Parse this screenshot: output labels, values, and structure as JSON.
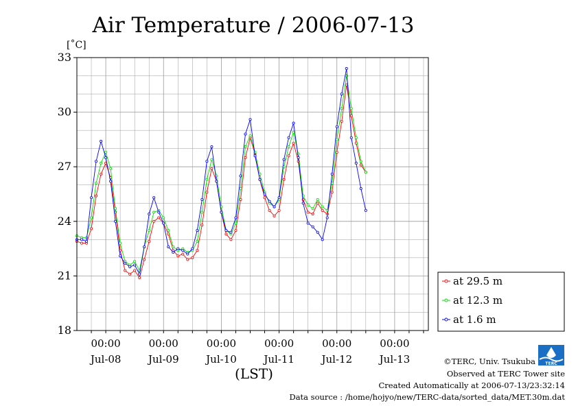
{
  "chart_data": {
    "type": "line",
    "title": "Air Temperature / 2006-07-13",
    "ylabel": "[˚C]",
    "xlabel": "(LST)",
    "ylim": [
      18,
      33
    ],
    "yticks": [
      18,
      21,
      24,
      27,
      30,
      33
    ],
    "xlim": [
      "2006-07-07T12:00",
      "2006-07-13T14:00"
    ],
    "xticks": [
      {
        "x": "2006-07-08T00:00",
        "label": "00:00",
        "day": "Jul-08"
      },
      {
        "x": "2006-07-09T00:00",
        "label": "00:00",
        "day": "Jul-09"
      },
      {
        "x": "2006-07-10T00:00",
        "label": "00:00",
        "day": "Jul-10"
      },
      {
        "x": "2006-07-11T00:00",
        "label": "00:00",
        "day": "Jul-11"
      },
      {
        "x": "2006-07-12T00:00",
        "label": "00:00",
        "day": "Jul-12"
      },
      {
        "x": "2006-07-13T00:00",
        "label": "00:00",
        "day": "Jul-13"
      }
    ],
    "grid": true,
    "legend_position": "right",
    "series": [
      {
        "name": "at 29.5 m",
        "color": "#ff0000",
        "points": [
          [
            "2006-07-07T12:00",
            22.9
          ],
          [
            "2006-07-07T14:00",
            22.8
          ],
          [
            "2006-07-07T16:00",
            22.8
          ],
          [
            "2006-07-07T18:00",
            23.6
          ],
          [
            "2006-07-07T20:00",
            25.4
          ],
          [
            "2006-07-07T22:00",
            26.6
          ],
          [
            "2006-07-08T00:00",
            27.2
          ],
          [
            "2006-07-08T02:00",
            26.4
          ],
          [
            "2006-07-08T04:00",
            24.5
          ],
          [
            "2006-07-08T06:00",
            22.4
          ],
          [
            "2006-07-08T08:00",
            21.3
          ],
          [
            "2006-07-08T10:00",
            21.1
          ],
          [
            "2006-07-08T12:00",
            21.3
          ],
          [
            "2006-07-08T14:00",
            20.9
          ],
          [
            "2006-07-08T16:00",
            21.9
          ],
          [
            "2006-07-08T18:00",
            22.9
          ],
          [
            "2006-07-08T20:00",
            24.0
          ],
          [
            "2006-07-08T22:00",
            24.2
          ],
          [
            "2006-07-09T00:00",
            23.9
          ],
          [
            "2006-07-09T02:00",
            23.3
          ],
          [
            "2006-07-09T04:00",
            22.4
          ],
          [
            "2006-07-09T06:00",
            22.1
          ],
          [
            "2006-07-09T08:00",
            22.2
          ],
          [
            "2006-07-09T10:00",
            21.9
          ],
          [
            "2006-07-09T12:00",
            22.0
          ],
          [
            "2006-07-09T14:00",
            22.4
          ],
          [
            "2006-07-09T16:00",
            23.8
          ],
          [
            "2006-07-09T18:00",
            25.6
          ],
          [
            "2006-07-09T20:00",
            26.9
          ],
          [
            "2006-07-09T22:00",
            26.2
          ],
          [
            "2006-07-10T00:00",
            24.5
          ],
          [
            "2006-07-10T02:00",
            23.3
          ],
          [
            "2006-07-10T04:00",
            23.0
          ],
          [
            "2006-07-10T06:00",
            23.5
          ],
          [
            "2006-07-10T08:00",
            25.2
          ],
          [
            "2006-07-10T10:00",
            27.5
          ],
          [
            "2006-07-10T12:00",
            28.6
          ],
          [
            "2006-07-10T14:00",
            27.7
          ],
          [
            "2006-07-10T16:00",
            26.3
          ],
          [
            "2006-07-10T18:00",
            25.3
          ],
          [
            "2006-07-10T20:00",
            24.6
          ],
          [
            "2006-07-10T22:00",
            24.3
          ],
          [
            "2006-07-11T00:00",
            24.6
          ],
          [
            "2006-07-11T02:00",
            26.3
          ],
          [
            "2006-07-11T04:00",
            27.6
          ],
          [
            "2006-07-11T06:00",
            28.3
          ],
          [
            "2006-07-11T08:00",
            27.3
          ],
          [
            "2006-07-11T10:00",
            25.2
          ],
          [
            "2006-07-11T12:00",
            24.5
          ],
          [
            "2006-07-11T14:00",
            24.4
          ],
          [
            "2006-07-11T16:00",
            25.0
          ],
          [
            "2006-07-11T18:00",
            24.6
          ],
          [
            "2006-07-11T20:00",
            24.4
          ],
          [
            "2006-07-11T22:00",
            25.6
          ],
          [
            "2006-07-12T00:00",
            27.8
          ],
          [
            "2006-07-12T02:00",
            29.5
          ],
          [
            "2006-07-12T04:00",
            31.5
          ],
          [
            "2006-07-12T06:00",
            29.8
          ],
          [
            "2006-07-12T08:00",
            28.3
          ],
          [
            "2006-07-12T10:00",
            27.1
          ],
          [
            "2006-07-12T12:00",
            26.7
          ]
        ]
      },
      {
        "name": "at 12.3 m",
        "color": "#00dd00",
        "points": [
          [
            "2006-07-07T12:00",
            23.2
          ],
          [
            "2006-07-07T14:00",
            23.1
          ],
          [
            "2006-07-07T16:00",
            23.1
          ],
          [
            "2006-07-07T18:00",
            24.2
          ],
          [
            "2006-07-07T20:00",
            26.1
          ],
          [
            "2006-07-07T22:00",
            27.2
          ],
          [
            "2006-07-08T00:00",
            27.8
          ],
          [
            "2006-07-08T02:00",
            26.9
          ],
          [
            "2006-07-08T04:00",
            24.7
          ],
          [
            "2006-07-08T06:00",
            22.8
          ],
          [
            "2006-07-08T08:00",
            21.8
          ],
          [
            "2006-07-08T10:00",
            21.6
          ],
          [
            "2006-07-08T12:00",
            21.8
          ],
          [
            "2006-07-08T14:00",
            21.3
          ],
          [
            "2006-07-08T16:00",
            22.6
          ],
          [
            "2006-07-08T18:00",
            23.5
          ],
          [
            "2006-07-08T20:00",
            24.5
          ],
          [
            "2006-07-08T22:00",
            24.6
          ],
          [
            "2006-07-09T00:00",
            24.2
          ],
          [
            "2006-07-09T02:00",
            23.5
          ],
          [
            "2006-07-09T04:00",
            22.6
          ],
          [
            "2006-07-09T06:00",
            22.4
          ],
          [
            "2006-07-09T08:00",
            22.5
          ],
          [
            "2006-07-09T10:00",
            22.3
          ],
          [
            "2006-07-09T12:00",
            22.4
          ],
          [
            "2006-07-09T14:00",
            22.9
          ],
          [
            "2006-07-09T16:00",
            24.5
          ],
          [
            "2006-07-09T18:00",
            26.3
          ],
          [
            "2006-07-09T20:00",
            27.4
          ],
          [
            "2006-07-09T22:00",
            26.5
          ],
          [
            "2006-07-10T00:00",
            24.8
          ],
          [
            "2006-07-10T02:00",
            23.5
          ],
          [
            "2006-07-10T04:00",
            23.3
          ],
          [
            "2006-07-10T06:00",
            23.9
          ],
          [
            "2006-07-10T08:00",
            25.8
          ],
          [
            "2006-07-10T10:00",
            28.1
          ],
          [
            "2006-07-10T12:00",
            28.7
          ],
          [
            "2006-07-10T14:00",
            27.8
          ],
          [
            "2006-07-10T16:00",
            26.6
          ],
          [
            "2006-07-10T18:00",
            25.6
          ],
          [
            "2006-07-10T20:00",
            25.0
          ],
          [
            "2006-07-10T22:00",
            24.8
          ],
          [
            "2006-07-11T00:00",
            25.2
          ],
          [
            "2006-07-11T02:00",
            27.0
          ],
          [
            "2006-07-11T04:00",
            28.1
          ],
          [
            "2006-07-11T06:00",
            28.9
          ],
          [
            "2006-07-11T08:00",
            27.7
          ],
          [
            "2006-07-11T10:00",
            25.4
          ],
          [
            "2006-07-11T12:00",
            24.9
          ],
          [
            "2006-07-11T14:00",
            24.7
          ],
          [
            "2006-07-11T16:00",
            25.2
          ],
          [
            "2006-07-11T18:00",
            24.8
          ],
          [
            "2006-07-11T20:00",
            24.6
          ],
          [
            "2006-07-11T22:00",
            26.1
          ],
          [
            "2006-07-12T00:00",
            28.5
          ],
          [
            "2006-07-12T02:00",
            30.2
          ],
          [
            "2006-07-12T04:00",
            32.0
          ],
          [
            "2006-07-12T06:00",
            30.2
          ],
          [
            "2006-07-12T08:00",
            28.6
          ],
          [
            "2006-07-12T10:00",
            27.3
          ],
          [
            "2006-07-12T12:00",
            26.7
          ]
        ]
      },
      {
        "name": "at 1.6 m",
        "color": "#0000ff",
        "points": [
          [
            "2006-07-07T12:00",
            23.0
          ],
          [
            "2006-07-07T14:00",
            23.0
          ],
          [
            "2006-07-07T16:00",
            22.9
          ],
          [
            "2006-07-07T18:00",
            25.3
          ],
          [
            "2006-07-07T20:00",
            27.3
          ],
          [
            "2006-07-07T22:00",
            28.4
          ],
          [
            "2006-07-08T00:00",
            27.5
          ],
          [
            "2006-07-08T02:00",
            26.2
          ],
          [
            "2006-07-08T04:00",
            24.0
          ],
          [
            "2006-07-08T06:00",
            22.1
          ],
          [
            "2006-07-08T08:00",
            21.7
          ],
          [
            "2006-07-08T10:00",
            21.5
          ],
          [
            "2006-07-08T12:00",
            21.6
          ],
          [
            "2006-07-08T14:00",
            21.1
          ],
          [
            "2006-07-08T16:00",
            22.6
          ],
          [
            "2006-07-08T18:00",
            24.4
          ],
          [
            "2006-07-08T20:00",
            25.3
          ],
          [
            "2006-07-08T22:00",
            24.5
          ],
          [
            "2006-07-09T00:00",
            23.9
          ],
          [
            "2006-07-09T02:00",
            22.6
          ],
          [
            "2006-07-09T04:00",
            22.3
          ],
          [
            "2006-07-09T06:00",
            22.5
          ],
          [
            "2006-07-09T08:00",
            22.4
          ],
          [
            "2006-07-09T10:00",
            22.2
          ],
          [
            "2006-07-09T12:00",
            22.5
          ],
          [
            "2006-07-09T14:00",
            23.5
          ],
          [
            "2006-07-09T16:00",
            25.2
          ],
          [
            "2006-07-09T18:00",
            27.3
          ],
          [
            "2006-07-09T20:00",
            28.1
          ],
          [
            "2006-07-09T22:00",
            26.2
          ],
          [
            "2006-07-10T00:00",
            24.5
          ],
          [
            "2006-07-10T02:00",
            23.5
          ],
          [
            "2006-07-10T04:00",
            23.4
          ],
          [
            "2006-07-10T06:00",
            24.2
          ],
          [
            "2006-07-10T08:00",
            26.5
          ],
          [
            "2006-07-10T10:00",
            28.8
          ],
          [
            "2006-07-10T12:00",
            29.6
          ],
          [
            "2006-07-10T14:00",
            27.6
          ],
          [
            "2006-07-10T16:00",
            26.3
          ],
          [
            "2006-07-10T18:00",
            25.5
          ],
          [
            "2006-07-10T20:00",
            25.1
          ],
          [
            "2006-07-10T22:00",
            24.8
          ],
          [
            "2006-07-11T00:00",
            25.3
          ],
          [
            "2006-07-11T02:00",
            27.4
          ],
          [
            "2006-07-11T04:00",
            28.6
          ],
          [
            "2006-07-11T06:00",
            29.4
          ],
          [
            "2006-07-11T08:00",
            27.5
          ],
          [
            "2006-07-11T10:00",
            25.0
          ],
          [
            "2006-07-11T12:00",
            23.9
          ],
          [
            "2006-07-11T14:00",
            23.7
          ],
          [
            "2006-07-11T16:00",
            23.4
          ],
          [
            "2006-07-11T18:00",
            23.0
          ],
          [
            "2006-07-11T20:00",
            24.2
          ],
          [
            "2006-07-11T22:00",
            26.6
          ],
          [
            "2006-07-12T00:00",
            29.2
          ],
          [
            "2006-07-12T02:00",
            31.0
          ],
          [
            "2006-07-12T04:00",
            32.4
          ],
          [
            "2006-07-12T06:00",
            28.6
          ],
          [
            "2006-07-12T08:00",
            27.2
          ],
          [
            "2006-07-12T10:00",
            25.8
          ],
          [
            "2006-07-12T12:00",
            24.6
          ]
        ]
      }
    ]
  },
  "footer": {
    "copyright": "©TERC, Univ. Tsukuba",
    "observed": "Observed at TERC Tower site",
    "created": "Created Automatically at 2006-07-13/23:32:14",
    "source": "Data source : /home/hojyo/new/TERC-data/sorted_data/MET.30m.dat",
    "logo_text": "TERC"
  },
  "colors": {
    "logo": "#1a6fc4",
    "grid": "#999999"
  }
}
